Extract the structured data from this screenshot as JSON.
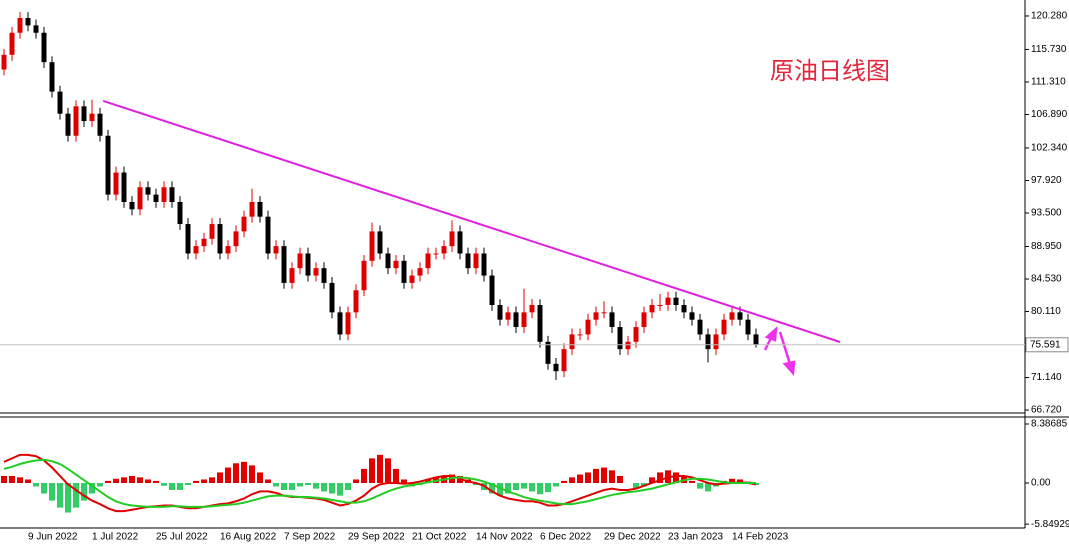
{
  "chart_data": [
    {
      "type": "candlestick",
      "title": "原油日线图",
      "categories": [
        null,
        null,
        null,
        "9 Jun 2022",
        null,
        null,
        null,
        null,
        null,
        null,
        null,
        "1 Jul 2022",
        null,
        null,
        null,
        null,
        null,
        null,
        null,
        "25 Jul 2022",
        null,
        null,
        null,
        null,
        null,
        null,
        null,
        "16 Aug 2022",
        null,
        null,
        null,
        null,
        null,
        null,
        null,
        "7 Sep 2022",
        null,
        null,
        null,
        null,
        null,
        null,
        null,
        "29 Sep 2022",
        null,
        null,
        null,
        null,
        null,
        null,
        null,
        "21 Oct 2022",
        null,
        null,
        null,
        null,
        null,
        null,
        null,
        "14 Nov 2022",
        null,
        null,
        null,
        null,
        null,
        null,
        null,
        "6 Dec 2022",
        null,
        null,
        null,
        null,
        null,
        null,
        null,
        "29 Dec 2022",
        null,
        null,
        null,
        null,
        null,
        null,
        null,
        "23 Jan 2023",
        null,
        null,
        null,
        null,
        null,
        null,
        null,
        "14 Feb 2023",
        null,
        null,
        null
      ],
      "open": [
        113,
        115,
        118,
        120,
        119,
        118,
        114,
        110,
        107,
        104,
        108,
        106,
        107,
        104,
        96,
        99,
        95,
        94,
        97,
        96,
        95,
        97,
        95,
        92,
        88,
        89,
        90,
        92,
        88,
        89,
        91,
        93,
        95,
        93,
        88,
        89,
        84,
        86,
        88,
        85,
        86,
        84,
        80,
        77,
        80,
        83,
        87,
        91,
        88,
        86,
        87,
        84,
        85,
        86,
        88,
        88,
        89,
        91,
        88,
        86,
        88,
        85,
        81,
        79,
        80,
        78,
        80,
        81,
        76,
        73,
        72,
        75,
        77,
        77,
        79,
        80,
        80,
        78,
        75,
        76,
        78,
        80,
        81,
        81,
        82,
        81,
        80,
        79,
        77,
        75,
        77,
        79,
        80,
        79,
        77
      ],
      "high": [
        115.8,
        118.8,
        120.8,
        120.8,
        119.8,
        118.8,
        114.8,
        110.8,
        107.8,
        108.8,
        108.8,
        108.9,
        107.8,
        104.8,
        99.8,
        99.8,
        95.8,
        97.8,
        97.8,
        96.8,
        97.8,
        97.8,
        95.8,
        92.8,
        89.8,
        90.8,
        92.8,
        92.8,
        89.8,
        91.8,
        93.8,
        96.8,
        95.8,
        93.8,
        89.8,
        89.8,
        86.8,
        88.8,
        88.8,
        86.8,
        86.8,
        84.8,
        80.8,
        80.8,
        83.8,
        87.8,
        92.2,
        91.8,
        88.8,
        87.8,
        87.8,
        85.8,
        86.8,
        88.8,
        88.8,
        89.8,
        92.5,
        91.8,
        88.8,
        88.8,
        88.8,
        85.8,
        81.8,
        80.8,
        80.8,
        83.2,
        81.8,
        81.8,
        76.8,
        73.8,
        75.8,
        77.8,
        77.8,
        79.8,
        80.8,
        81.5,
        80.8,
        78.8,
        76.8,
        78.8,
        80.8,
        81.8,
        82.5,
        82.8,
        82.8,
        81.8,
        80.8,
        79.8,
        77.8,
        77.8,
        79.8,
        80.8,
        80.8,
        79.8,
        77.8
      ],
      "low": [
        112.2,
        114.2,
        117.2,
        118.2,
        117.2,
        113.2,
        109.2,
        106.2,
        103.2,
        103.2,
        105.2,
        105.2,
        103.2,
        95.2,
        95.2,
        94.2,
        93.2,
        93.2,
        95.2,
        94.2,
        94.2,
        94.2,
        91.2,
        87.2,
        87.2,
        88.2,
        89.2,
        87.2,
        87.2,
        88.2,
        90.2,
        92.2,
        92.2,
        87.2,
        87.2,
        83.2,
        83.2,
        85.2,
        84.2,
        84.2,
        83.2,
        79.2,
        76.2,
        76.2,
        79.2,
        82.2,
        86.2,
        87.2,
        85.2,
        85.2,
        83.2,
        83.2,
        84.2,
        85.2,
        87.2,
        87.2,
        88.2,
        87.2,
        85.2,
        85.2,
        84.2,
        80.2,
        78.2,
        78.2,
        77.2,
        77.2,
        79.2,
        75.2,
        72.2,
        70.8,
        71.2,
        74.2,
        76.2,
        76.2,
        78.2,
        79.2,
        77.2,
        74.2,
        74.2,
        75.2,
        77.2,
        79.2,
        80.2,
        80.2,
        80.2,
        79.2,
        78.2,
        76.2,
        73.2,
        74.2,
        76.2,
        78.2,
        78.2,
        76.2,
        75.2
      ],
      "close": [
        115,
        118,
        120,
        119,
        118,
        114,
        110,
        107,
        104,
        108,
        106,
        107,
        104,
        96,
        99,
        95,
        94,
        97,
        96,
        95,
        97,
        95,
        92,
        88,
        89,
        90,
        92,
        88,
        89,
        91,
        93,
        95,
        93,
        88,
        89,
        84,
        86,
        88,
        85,
        86,
        84,
        80,
        77,
        80,
        83,
        87,
        91,
        88,
        86,
        87,
        84,
        85,
        86,
        88,
        88,
        89,
        91,
        88,
        86,
        88,
        85,
        81,
        79,
        80,
        78,
        80,
        81,
        76,
        73,
        72,
        75,
        77,
        77,
        79,
        80,
        80,
        78,
        75,
        76,
        78,
        80,
        81,
        81,
        82,
        81,
        80,
        79,
        77,
        75,
        77,
        79,
        80,
        79,
        77,
        75.59
      ],
      "up_color": "#e00000",
      "down_color": "#000000",
      "ylim": [
        66.32,
        122.45
      ],
      "yticks": [
        {
          "value": 120.28,
          "label": "120.280"
        },
        {
          "value": 115.73,
          "label": "115.730"
        },
        {
          "value": 111.31,
          "label": "111.310"
        },
        {
          "value": 106.89,
          "label": "106.890"
        },
        {
          "value": 102.34,
          "label": "102.340"
        },
        {
          "value": 97.92,
          "label": "97.920"
        },
        {
          "value": 93.5,
          "label": "93.500"
        },
        {
          "value": 88.95,
          "label": "88.950"
        },
        {
          "value": 84.53,
          "label": "84.530"
        },
        {
          "value": 80.11,
          "label": "80.110"
        },
        {
          "value": 71.14,
          "label": "71.140"
        },
        {
          "value": 66.72,
          "label": "66.720"
        }
      ],
      "current_price": 75.591,
      "trendline": {
        "x": [
          12.4,
          104.5
        ],
        "y": [
          108.73,
          75.97
        ],
        "color": "#e020e0"
      }
    },
    {
      "type": "macd",
      "histogram": {
        "values": [
          1,
          1,
          0.8,
          0.5,
          -0.5,
          -1.5,
          -2.5,
          -3.5,
          -4.2,
          -3.5,
          -2.5,
          -1.5,
          -0.5,
          0.3,
          0.6,
          0.8,
          1,
          0.8,
          0.5,
          0.3,
          -0.4,
          -1,
          -1,
          -0.3,
          0.3,
          0.5,
          0.8,
          1.5,
          2.2,
          2.8,
          3,
          2.5,
          1.5,
          0.5,
          -0.5,
          -1,
          -1,
          -0.5,
          -0.3,
          -0.8,
          -1.2,
          -1.5,
          -1.8,
          -1,
          0.5,
          2,
          3.5,
          4,
          3.5,
          2,
          0.5,
          -0.5,
          -0.3,
          0.5,
          0.8,
          1,
          1.2,
          1,
          0.5,
          -0.3,
          -1,
          -1.5,
          -1.8,
          -1.5,
          -1,
          -0.8,
          -1.2,
          -1.6,
          -1.3,
          -0.5,
          0.3,
          0.8,
          1.2,
          1.5,
          2,
          2.2,
          1.8,
          1,
          0,
          -0.8,
          -0.5,
          0.8,
          1.5,
          1.8,
          1.5,
          1,
          0.3,
          -0.8,
          -1.2,
          -0.5,
          0.3,
          0.6,
          0.5,
          0.2,
          -0.3
        ],
        "pos_color": "#e00000",
        "neg_color": "#33cc66"
      },
      "series": [
        {
          "color": "#e00000",
          "values": [
            3,
            3.5,
            4,
            4,
            3.8,
            3.2,
            2.2,
            1,
            -0.2,
            -1,
            -1.8,
            -2.5,
            -3,
            -3.6,
            -4,
            -4,
            -3.8,
            -3.6,
            -3.4,
            -3.3,
            -3.2,
            -3.2,
            -3.4,
            -3.6,
            -3.6,
            -3.4,
            -3.2,
            -3,
            -2.9,
            -2.6,
            -2.2,
            -1.6,
            -1.2,
            -1.2,
            -1.4,
            -1.8,
            -2,
            -2,
            -2.1,
            -2.2,
            -2.4,
            -2.8,
            -3.2,
            -3,
            -2.5,
            -1.8,
            -0.8,
            -0.2,
            0,
            0,
            -0.1,
            0,
            0.2,
            0.5,
            0.8,
            1,
            1,
            0.6,
            0.2,
            0,
            -0.4,
            -1.2,
            -1.8,
            -2.2,
            -2.4,
            -2.6,
            -2.6,
            -2.8,
            -3.2,
            -3.2,
            -3,
            -2.6,
            -2.2,
            -1.8,
            -1.4,
            -1,
            -0.8,
            -1,
            -1,
            -0.8,
            -0.4,
            0,
            0.4,
            0.8,
            1,
            1,
            0.8,
            0.4,
            0,
            -0.2,
            -0.1,
            0,
            0.1,
            0,
            -0.2
          ]
        },
        {
          "color": "#22cc22",
          "values": [
            2,
            2.3,
            2.7,
            3,
            3.2,
            3.3,
            3.1,
            2.7,
            2,
            1.2,
            0.4,
            -0.4,
            -1.2,
            -2,
            -2.6,
            -3,
            -3.2,
            -3.3,
            -3.4,
            -3.4,
            -3.4,
            -3.3,
            -3.3,
            -3.4,
            -3.4,
            -3.4,
            -3.3,
            -3.2,
            -3.1,
            -3,
            -2.8,
            -2.5,
            -2.2,
            -1.9,
            -1.8,
            -1.8,
            -1.9,
            -2,
            -2,
            -2.1,
            -2.2,
            -2.4,
            -2.6,
            -2.8,
            -2.8,
            -2.6,
            -2.2,
            -1.7,
            -1.2,
            -0.8,
            -0.5,
            -0.3,
            -0.1,
            0.1,
            0.3,
            0.5,
            0.7,
            0.8,
            0.7,
            0.5,
            0.2,
            -0.2,
            -0.7,
            -1.2,
            -1.6,
            -2,
            -2.3,
            -2.5,
            -2.7,
            -2.9,
            -3,
            -3,
            -2.8,
            -2.6,
            -2.3,
            -2,
            -1.7,
            -1.5,
            -1.3,
            -1.2,
            -1,
            -0.8,
            -0.5,
            -0.2,
            0.1,
            0.4,
            0.6,
            0.6,
            0.5,
            0.3,
            0.1,
            0,
            0,
            0,
            0
          ]
        }
      ],
      "ylim": [
        -6.4,
        9.24
      ],
      "yticks": [
        8.38685,
        {
          "value": 0,
          "label": "0.00"
        },
        -5.84929
      ]
    }
  ]
}
